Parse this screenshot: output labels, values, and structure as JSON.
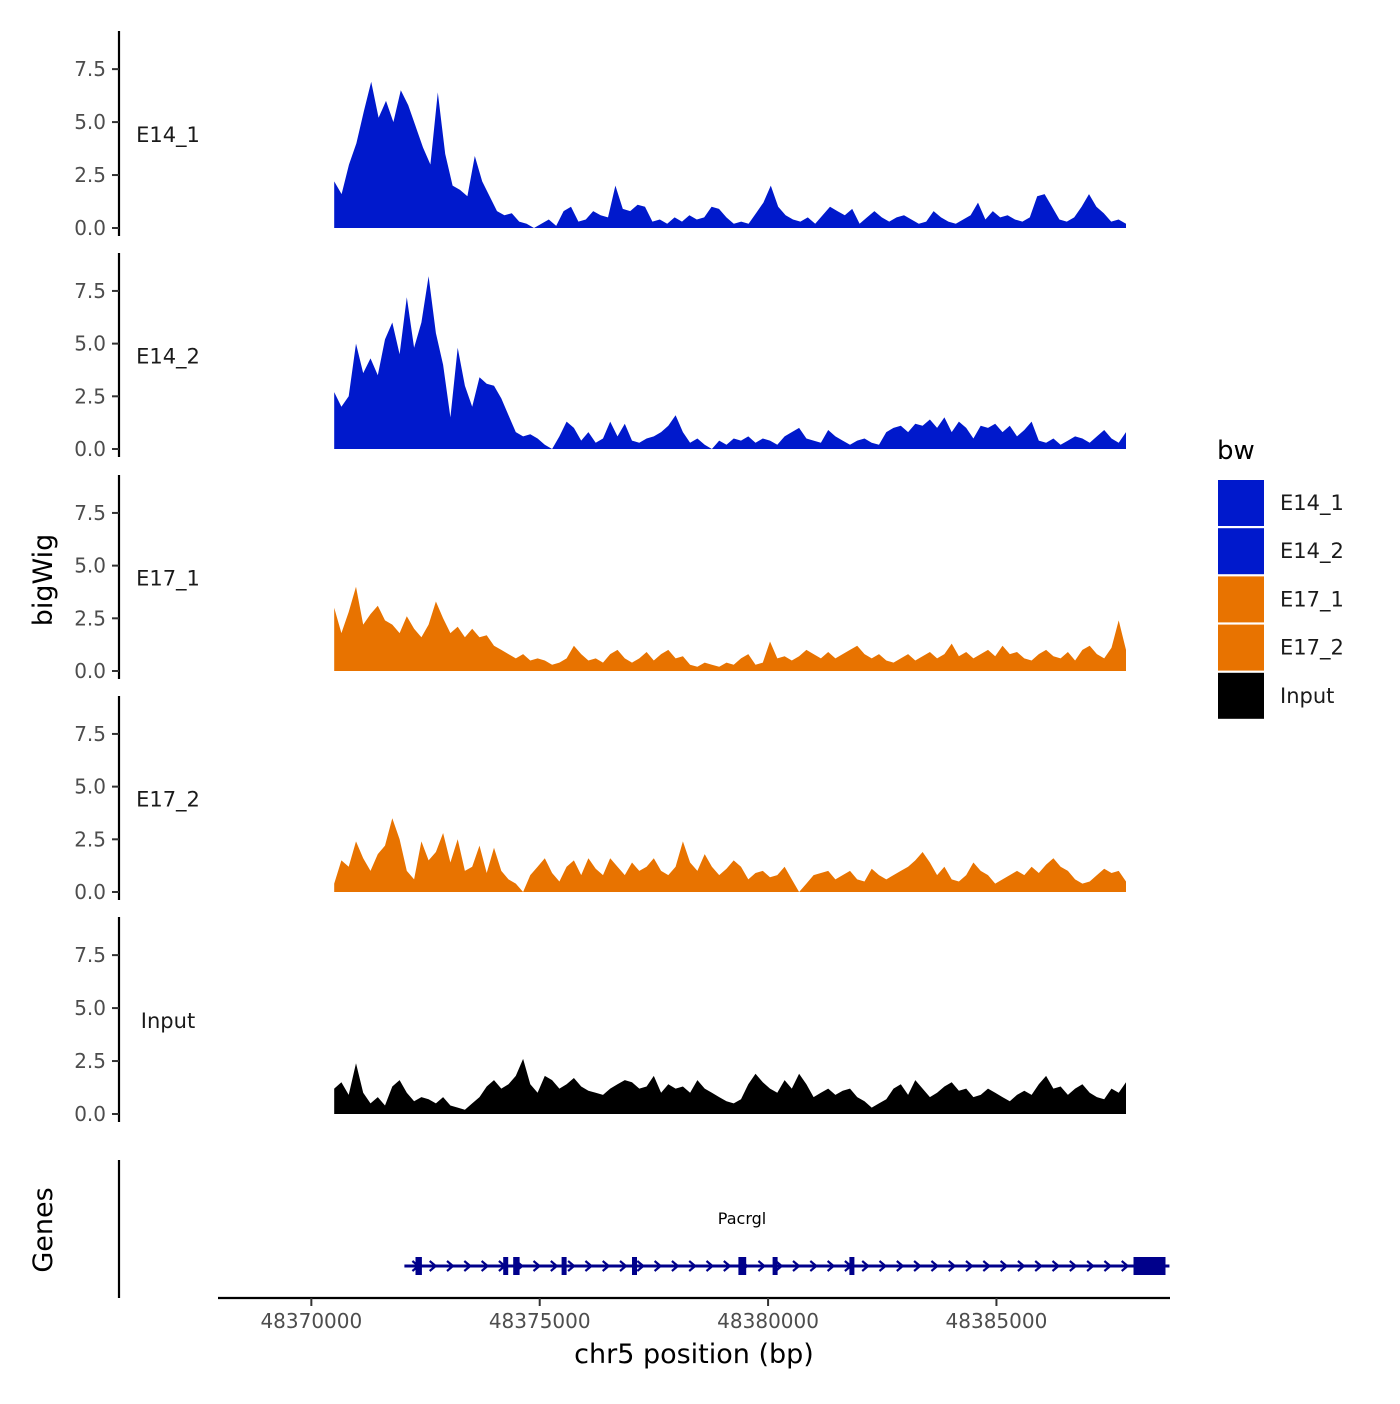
{
  "chart_data": {
    "type": "area",
    "title": "",
    "xlabel": "chr5 position (bp)",
    "ylabel": "bigWig",
    "xlim": [
      48368000,
      48388800
    ],
    "ylim": [
      0,
      9.3
    ],
    "x_ticks": [
      48370000,
      48375000,
      48380000,
      48385000
    ],
    "x_tick_labels": [
      "48370000",
      "48375000",
      "48380000",
      "48385000"
    ],
    "y_ticks": [
      0,
      2.5,
      5,
      7.5
    ],
    "y_tick_labels": [
      "0.0",
      "2.5",
      "5.0",
      "7.5"
    ],
    "region": {
      "start": 48370500,
      "end": 48388800
    },
    "tracks": [
      {
        "name": "E14_1",
        "color": "#0019CC",
        "values": [
          2.2,
          1.6,
          3.0,
          4.0,
          5.5,
          6.9,
          5.2,
          6.0,
          5.0,
          6.5,
          5.8,
          4.8,
          3.8,
          3.0,
          6.4,
          3.5,
          2.0,
          1.8,
          1.5,
          3.4,
          2.2,
          1.5,
          0.8,
          0.6,
          0.7,
          0.3,
          0.2,
          0,
          0.2,
          0.4,
          0.1,
          0.8,
          1.0,
          0.3,
          0.4,
          0.8,
          0.6,
          0.5,
          2.0,
          0.9,
          0.8,
          1.1,
          1.0,
          0.3,
          0.4,
          0.2,
          0.5,
          0.3,
          0.6,
          0.4,
          0.5,
          1.0,
          0.9,
          0.5,
          0.2,
          0.3,
          0.2,
          0.7,
          1.2,
          2.0,
          1.0,
          0.6,
          0.4,
          0.3,
          0.5,
          0.2,
          0.6,
          1.0,
          0.8,
          0.6,
          0.9,
          0.2,
          0.5,
          0.8,
          0.5,
          0.3,
          0.5,
          0.6,
          0.4,
          0.2,
          0.3,
          0.8,
          0.5,
          0.3,
          0.2,
          0.4,
          0.6,
          1.2,
          0.4,
          0.8,
          0.5,
          0.6,
          0.4,
          0.3,
          0.5,
          1.5,
          1.6,
          1.0,
          0.4,
          0.3,
          0.5,
          1.0,
          1.6,
          1.0,
          0.7,
          0.3,
          0.4,
          0.2
        ]
      },
      {
        "name": "E14_2",
        "color": "#0019CC",
        "values": [
          2.7,
          2.0,
          2.5,
          5.0,
          3.6,
          4.3,
          3.5,
          5.2,
          6.0,
          4.5,
          7.2,
          4.8,
          6.0,
          8.2,
          5.5,
          4.0,
          1.5,
          4.8,
          3.0,
          2.0,
          3.4,
          3.1,
          3.0,
          2.4,
          1.6,
          0.8,
          0.6,
          0.7,
          0.5,
          0.2,
          0,
          0.6,
          1.3,
          1.0,
          0.4,
          0.8,
          0.3,
          0.5,
          1.3,
          0.6,
          1.2,
          0.4,
          0.3,
          0.5,
          0.6,
          0.8,
          1.1,
          1.6,
          0.8,
          0.3,
          0.5,
          0.2,
          0,
          0.4,
          0.2,
          0.5,
          0.4,
          0.6,
          0.3,
          0.5,
          0.4,
          0.2,
          0.6,
          0.8,
          1.0,
          0.5,
          0.4,
          0.3,
          0.9,
          0.6,
          0.4,
          0.2,
          0.4,
          0.5,
          0.3,
          0.2,
          0.8,
          1.0,
          1.1,
          0.8,
          1.2,
          1.1,
          1.4,
          1.0,
          1.5,
          0.8,
          1.3,
          1.0,
          0.5,
          1.1,
          1.0,
          1.2,
          0.8,
          1.1,
          0.6,
          0.9,
          1.3,
          0.4,
          0.3,
          0.5,
          0.2,
          0.4,
          0.6,
          0.5,
          0.3,
          0.6,
          0.9,
          0.5,
          0.3,
          0.8
        ]
      },
      {
        "name": "E17_1",
        "color": "#E87300",
        "values": [
          3.0,
          1.8,
          2.8,
          4.0,
          2.2,
          2.7,
          3.1,
          2.4,
          2.2,
          1.8,
          2.6,
          2.0,
          1.6,
          2.2,
          3.3,
          2.5,
          1.8,
          2.1,
          1.6,
          2.0,
          1.6,
          1.7,
          1.2,
          1.0,
          0.8,
          0.6,
          0.8,
          0.5,
          0.6,
          0.5,
          0.3,
          0.4,
          0.6,
          1.2,
          0.8,
          0.5,
          0.6,
          0.4,
          0.8,
          1.0,
          0.6,
          0.4,
          0.6,
          0.9,
          0.5,
          0.8,
          1.0,
          0.6,
          0.7,
          0.3,
          0.2,
          0.4,
          0.3,
          0.2,
          0.4,
          0.3,
          0.6,
          0.8,
          0.3,
          0.4,
          1.4,
          0.6,
          0.7,
          0.5,
          0.7,
          1.0,
          0.8,
          0.6,
          0.9,
          0.6,
          0.8,
          1.0,
          1.2,
          0.8,
          0.6,
          0.8,
          0.5,
          0.4,
          0.6,
          0.8,
          0.5,
          0.7,
          0.9,
          0.6,
          0.8,
          1.3,
          0.7,
          0.9,
          0.6,
          0.8,
          1.0,
          0.7,
          1.2,
          0.8,
          0.9,
          0.6,
          0.5,
          0.8,
          1.0,
          0.7,
          0.6,
          0.9,
          0.5,
          1.0,
          1.2,
          0.8,
          0.6,
          1.1,
          2.4,
          1.0
        ]
      },
      {
        "name": "E17_2",
        "color": "#E87300",
        "values": [
          0.4,
          1.5,
          1.2,
          2.4,
          1.6,
          1.0,
          1.8,
          2.2,
          3.5,
          2.5,
          1.0,
          0.6,
          2.4,
          1.5,
          1.9,
          2.8,
          1.4,
          2.5,
          1.0,
          1.2,
          2.2,
          0.9,
          2.1,
          1.0,
          0.6,
          0.4,
          0,
          0.8,
          1.2,
          1.6,
          0.9,
          0.5,
          1.2,
          1.5,
          0.8,
          1.6,
          1.1,
          0.8,
          1.6,
          1.2,
          0.8,
          1.4,
          1.0,
          1.2,
          1.6,
          1.0,
          0.8,
          1.2,
          2.4,
          1.4,
          1.0,
          1.8,
          1.2,
          0.8,
          1.1,
          1.5,
          1.2,
          0.6,
          0.9,
          1.0,
          0.7,
          0.8,
          1.2,
          0.6,
          0,
          0.4,
          0.8,
          0.9,
          1.0,
          0.6,
          0.8,
          1.0,
          0.6,
          0.5,
          1.1,
          0.8,
          0.6,
          0.8,
          1.0,
          1.2,
          1.5,
          1.9,
          1.4,
          0.8,
          1.2,
          0.6,
          0.5,
          0.8,
          1.4,
          1.0,
          0.8,
          0.4,
          0.6,
          0.8,
          1.0,
          0.8,
          1.2,
          0.9,
          1.3,
          1.6,
          1.2,
          1.0,
          0.6,
          0.4,
          0.5,
          0.8,
          1.1,
          0.9,
          1.0,
          0.5
        ]
      },
      {
        "name": "Input",
        "color": "#000000",
        "values": [
          1.2,
          1.5,
          0.9,
          2.4,
          1.0,
          0.5,
          0.8,
          0.4,
          1.3,
          1.6,
          1.0,
          0.6,
          0.8,
          0.7,
          0.5,
          0.8,
          0.4,
          0.3,
          0.2,
          0.5,
          0.8,
          1.3,
          1.6,
          1.2,
          1.4,
          1.8,
          2.6,
          1.4,
          1.0,
          1.8,
          1.6,
          1.2,
          1.4,
          1.7,
          1.3,
          1.1,
          1.0,
          0.9,
          1.2,
          1.4,
          1.6,
          1.5,
          1.2,
          1.3,
          1.8,
          1.0,
          1.4,
          1.2,
          1.3,
          1.0,
          1.6,
          1.2,
          1.0,
          0.8,
          0.6,
          0.5,
          0.7,
          1.4,
          1.9,
          1.5,
          1.2,
          1.0,
          1.6,
          1.2,
          1.9,
          1.4,
          0.8,
          1.0,
          1.2,
          0.9,
          1.1,
          1.2,
          0.8,
          0.6,
          0.3,
          0.5,
          0.7,
          1.2,
          1.4,
          0.9,
          1.6,
          1.2,
          0.8,
          1.0,
          1.3,
          1.5,
          1.1,
          1.2,
          0.8,
          0.9,
          1.2,
          1.0,
          0.8,
          0.6,
          0.9,
          1.1,
          0.9,
          1.4,
          1.8,
          1.2,
          1.3,
          0.9,
          1.2,
          1.4,
          1.0,
          0.8,
          0.7,
          1.2,
          1.0,
          1.5
        ]
      }
    ],
    "gene_track": {
      "title": "Genes",
      "gene": {
        "name": "Pacrgl",
        "start": 48372300,
        "end": 48388700,
        "strand": "+",
        "color": "#00008B",
        "exons": [
          [
            48372280,
            48372420
          ],
          [
            48374200,
            48374300
          ],
          [
            48374420,
            48374560
          ],
          [
            48375480,
            48375560
          ],
          [
            48377020,
            48377080
          ],
          [
            48379350,
            48379520
          ],
          [
            48380100,
            48380200
          ],
          [
            48381780,
            48381860
          ],
          [
            48388000,
            48388700
          ]
        ]
      }
    },
    "legend": {
      "title": "bw",
      "position": "right",
      "entries": [
        {
          "label": "E14_1",
          "color": "#0019CC"
        },
        {
          "label": "E14_2",
          "color": "#0019CC"
        },
        {
          "label": "E17_1",
          "color": "#E87300"
        },
        {
          "label": "E17_2",
          "color": "#E87300"
        },
        {
          "label": "Input",
          "color": "#000000"
        }
      ]
    }
  }
}
